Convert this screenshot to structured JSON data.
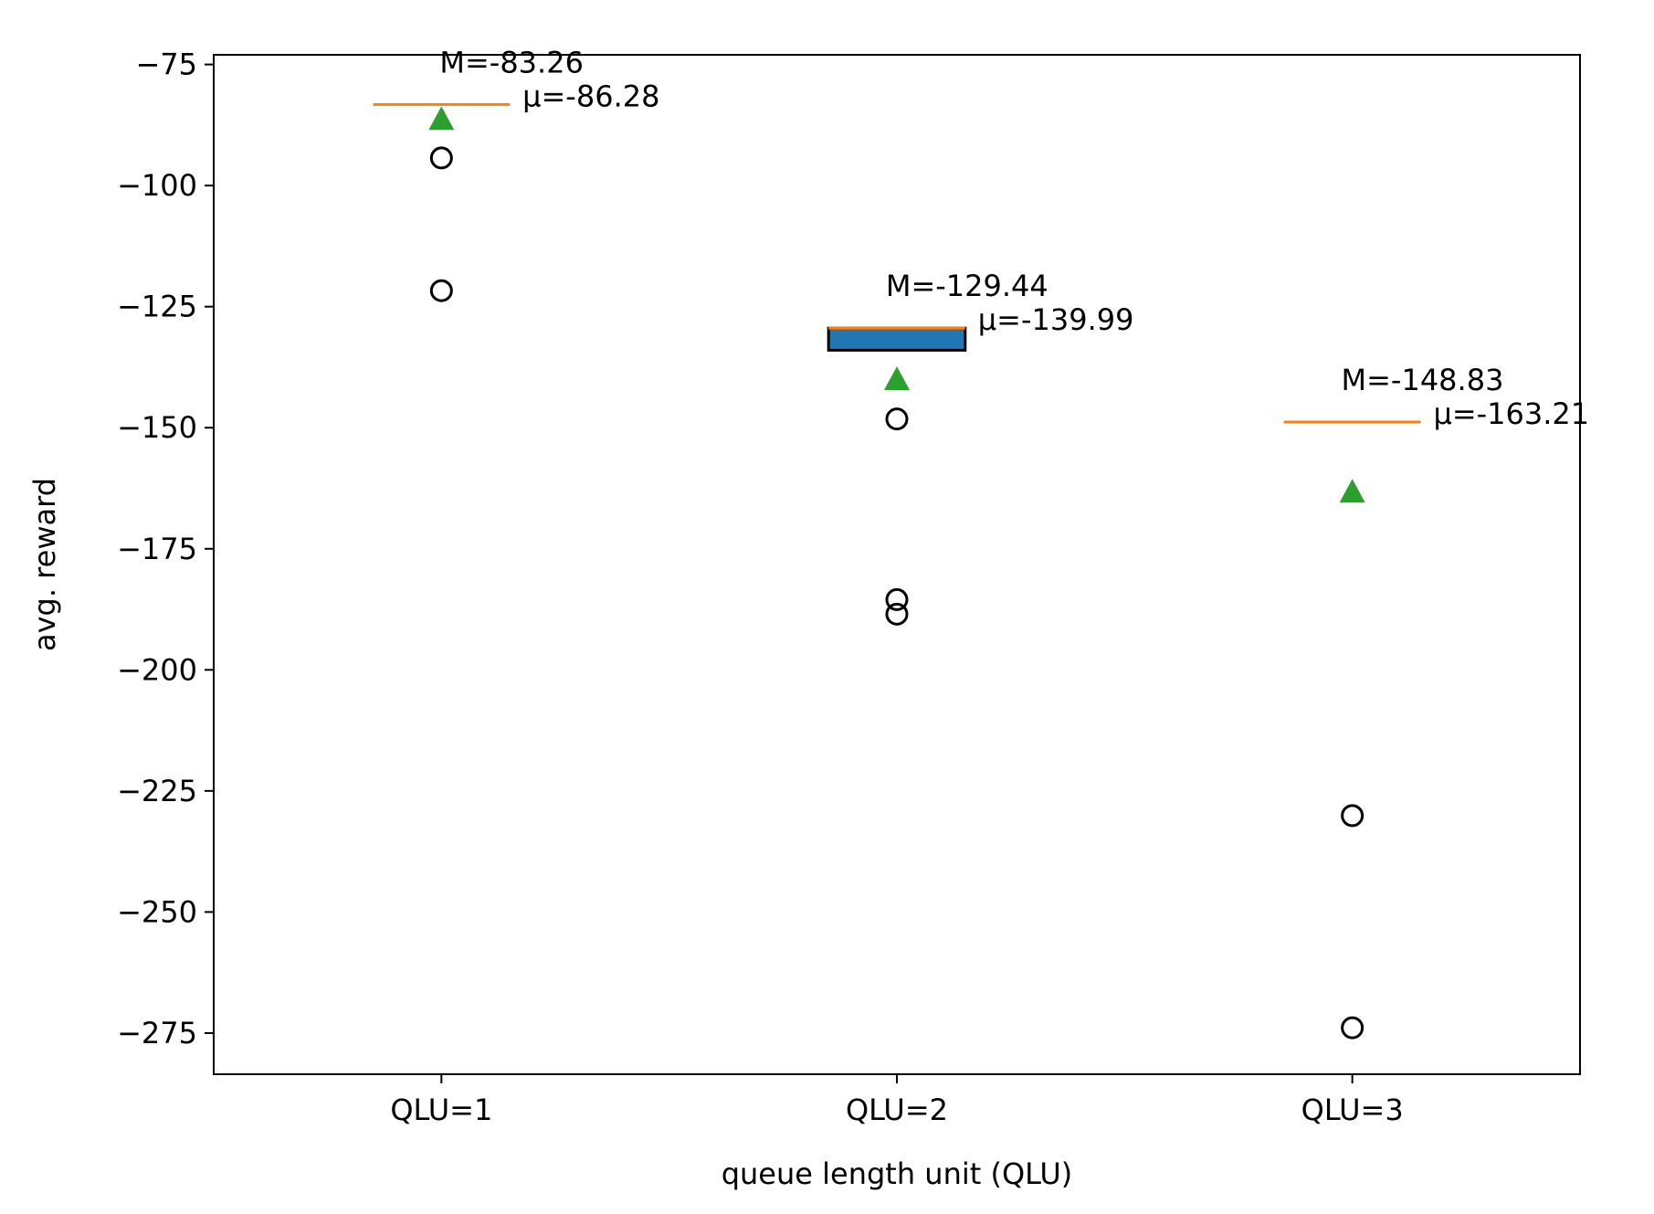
{
  "chart_data": {
    "type": "box",
    "title": "",
    "xlabel": "queue length unit (QLU)",
    "ylabel": "avg. reward",
    "ylim": [
      -283.5,
      -73
    ],
    "yticks": [
      -75,
      -100,
      -125,
      -150,
      -175,
      -200,
      -225,
      -250,
      -275
    ],
    "ytick_labels": [
      "−75",
      "−100",
      "−125",
      "−150",
      "−175",
      "−200",
      "−225",
      "−250",
      "−275"
    ],
    "categories": [
      "QLU=1",
      "QLU=2",
      "QLU=3"
    ],
    "grid": false,
    "legend": "none",
    "boxes": [
      {
        "category": "QLU=1",
        "q1": -83.26,
        "median": -83.26,
        "q3": -83.26,
        "mean": -86.28,
        "outliers": [
          -94.3,
          -121.7
        ],
        "median_label": "M=-83.26",
        "mean_label": "μ=-86.28"
      },
      {
        "category": "QLU=2",
        "q1": -134.0,
        "median": -129.44,
        "q3": -129.44,
        "mean": -139.99,
        "outliers": [
          -148.2,
          -185.5,
          -188.5
        ],
        "median_label": "M=-129.44",
        "mean_label": "μ=-139.99"
      },
      {
        "category": "QLU=3",
        "q1": -148.83,
        "median": -148.83,
        "q3": -148.83,
        "mean": -163.21,
        "outliers": [
          -230.1,
          -273.9
        ],
        "median_label": "M=-148.83",
        "mean_label": "μ=-163.21"
      }
    ],
    "colors": {
      "box_fill": "#1f77b4",
      "median": "#ff7f0e",
      "mean_marker": "#2ca02c",
      "outlier": "#000000"
    }
  }
}
